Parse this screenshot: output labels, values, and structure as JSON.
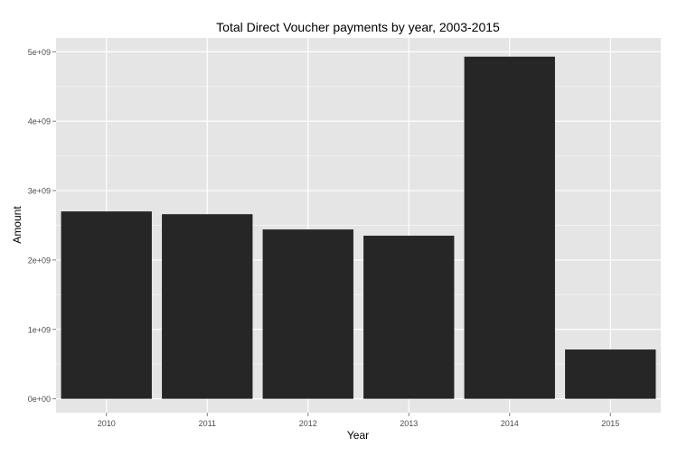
{
  "chart_data": {
    "type": "bar",
    "title": "Total Direct Voucher payments by year, 2003-2015",
    "xlabel": "Year",
    "ylabel": "Amount",
    "categories": [
      "2010",
      "2011",
      "2012",
      "2013",
      "2014",
      "2015"
    ],
    "values": [
      2700000000,
      2660000000,
      2440000000,
      2350000000,
      4930000000,
      710000000
    ],
    "ylim": [
      -200000000,
      5200000000
    ],
    "yticks": [
      0,
      1000000000,
      2000000000,
      3000000000,
      4000000000,
      5000000000
    ],
    "ytick_labels": [
      "0e+00",
      "1e+09",
      "2e+09",
      "3e+09",
      "4e+09",
      "5e+09"
    ],
    "grid": true,
    "legend": "none",
    "colors": {
      "panel_background": "#e5e5e5",
      "grid_major": "#ffffff",
      "grid_minor": "#f2f2f2",
      "bar_fill": "#262626",
      "tick_label": "#4d4d4d",
      "text": "#000000"
    }
  }
}
